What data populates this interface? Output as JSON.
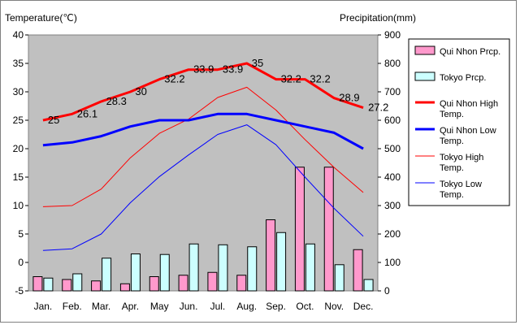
{
  "chart_data": {
    "type": "bar",
    "left_axis_title": "Temperature(℃)",
    "right_axis_title": "Precipitation(mm)",
    "categories": [
      "Jan.",
      "Feb.",
      "Mar.",
      "Apr.",
      "May",
      "Jun.",
      "Jul.",
      "Aug.",
      "Sep.",
      "Oct.",
      "Nov.",
      "Dec."
    ],
    "temperature_axis": {
      "min": -5,
      "max": 40,
      "ticks": [
        40,
        35,
        30,
        25,
        20,
        15,
        10,
        5,
        0,
        -5
      ]
    },
    "precipitation_axis": {
      "min": 0,
      "max": 900,
      "ticks": [
        900,
        800,
        700,
        600,
        500,
        400,
        300,
        200,
        100,
        0
      ]
    },
    "grid": false,
    "plot_background": "#c0c0c0",
    "legend_position": "right",
    "bar_series": [
      {
        "name": "Qui Nhon Prcp.",
        "color": "#ff99cc",
        "values": [
          50,
          40,
          35,
          25,
          50,
          55,
          65,
          55,
          250,
          435,
          435,
          145
        ]
      },
      {
        "name": "Tokyo Prcp.",
        "color": "#ccffff",
        "values": [
          45,
          60,
          115,
          130,
          128,
          165,
          162,
          155,
          205,
          165,
          92,
          40
        ]
      }
    ],
    "line_series": [
      {
        "name": "Qui Nhon High Temp.",
        "color": "#ff0000",
        "width": 3,
        "values": [
          25,
          26.1,
          28.3,
          30,
          32.2,
          33.9,
          33.9,
          35,
          32.2,
          32.2,
          28.9,
          27.2
        ],
        "labels": [
          "25",
          "26.1",
          "28.3",
          "30",
          "32.2",
          "33.9",
          "33.9",
          "35",
          "32.2",
          "32.2",
          "28.9",
          "27.2"
        ]
      },
      {
        "name": "Qui Nhon Low Temp.",
        "color": "#0000ff",
        "width": 3,
        "values": [
          20.6,
          21.1,
          22.2,
          23.9,
          25,
          25,
          26.1,
          26.1,
          25,
          23.9,
          22.8,
          20
        ]
      },
      {
        "name": "Tokyo High Temp.",
        "color": "#ff0000",
        "width": 1,
        "values": [
          9.8,
          10,
          12.9,
          18.4,
          22.7,
          25.2,
          29,
          30.8,
          26.8,
          21.6,
          16.7,
          12.3
        ]
      },
      {
        "name": "Tokyo Low Temp.",
        "color": "#0000ff",
        "width": 1,
        "values": [
          2.1,
          2.4,
          5,
          10.5,
          15.1,
          18.9,
          22.5,
          24.2,
          20.7,
          15,
          9.5,
          4.6
        ]
      }
    ],
    "legend": [
      {
        "label": "Qui Nhon Prcp.",
        "kind": "box",
        "color": "#ff99cc"
      },
      {
        "label": "Tokyo Prcp.",
        "kind": "box",
        "color": "#ccffff"
      },
      {
        "label": "Qui Nhon High Temp.",
        "kind": "line",
        "color": "#ff0000",
        "width": 3
      },
      {
        "label": "Qui Nhon Low Temp.",
        "kind": "line",
        "color": "#0000ff",
        "width": 3
      },
      {
        "label": "Tokyo High Temp.",
        "kind": "line",
        "color": "#ff0000",
        "width": 1
      },
      {
        "label": "Tokyo Low Temp.",
        "kind": "line",
        "color": "#0000ff",
        "width": 1
      }
    ]
  }
}
